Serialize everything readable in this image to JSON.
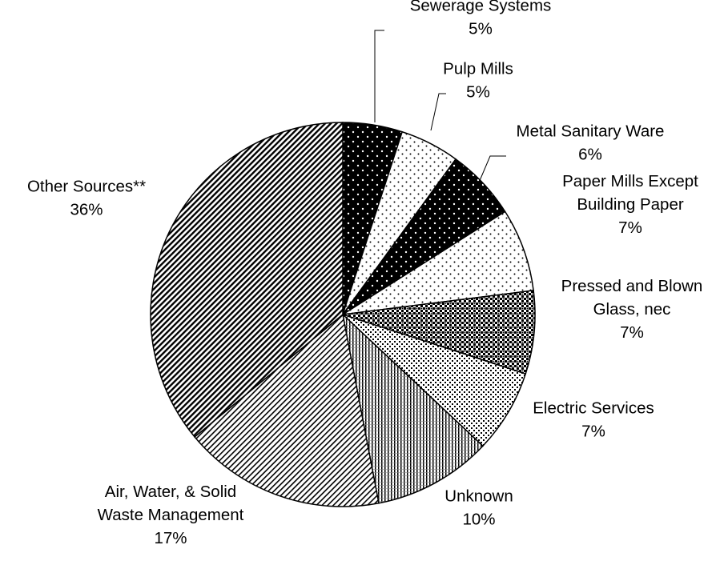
{
  "chart_data": {
    "type": "pie",
    "title": "",
    "slices": [
      {
        "label": "Sewerage Systems",
        "pct_text": "5%",
        "value": 5,
        "pattern": "black-dots"
      },
      {
        "label": "Pulp Mills",
        "pct_text": "5%",
        "value": 5,
        "pattern": "white-dots"
      },
      {
        "label": "Metal Sanitary Ware",
        "pct_text": "6%",
        "value": 6,
        "pattern": "black-dots"
      },
      {
        "label": "Paper Mills Except Building Paper",
        "label_lines": [
          "Paper Mills Except",
          "Building Paper"
        ],
        "pct_text": "7%",
        "value": 7,
        "pattern": "white-dots"
      },
      {
        "label": "Pressed and Blown Glass, nec",
        "label_lines": [
          "Pressed and Blown",
          "Glass, nec"
        ],
        "pct_text": "7%",
        "value": 7,
        "pattern": "dark-check"
      },
      {
        "label": "Electric Services",
        "pct_text": "7%",
        "value": 7,
        "pattern": "light-check"
      },
      {
        "label": "Unknown",
        "pct_text": "10%",
        "value": 10,
        "pattern": "vertical-lines"
      },
      {
        "label": "Air, Water, & Solid Waste Management",
        "label_lines": [
          "Air, Water, & Solid",
          "Waste Management"
        ],
        "pct_text": "17%",
        "value": 17,
        "pattern": "diagonal-light"
      },
      {
        "label": "Other Sources**",
        "pct_text": "36%",
        "value": 36,
        "pattern": "diagonal-dark"
      }
    ],
    "start_angle": "12 o'clock",
    "direction": "clockwise",
    "legend": "none",
    "colors": {
      "stroke": "#000000",
      "background": "#ffffff"
    }
  }
}
